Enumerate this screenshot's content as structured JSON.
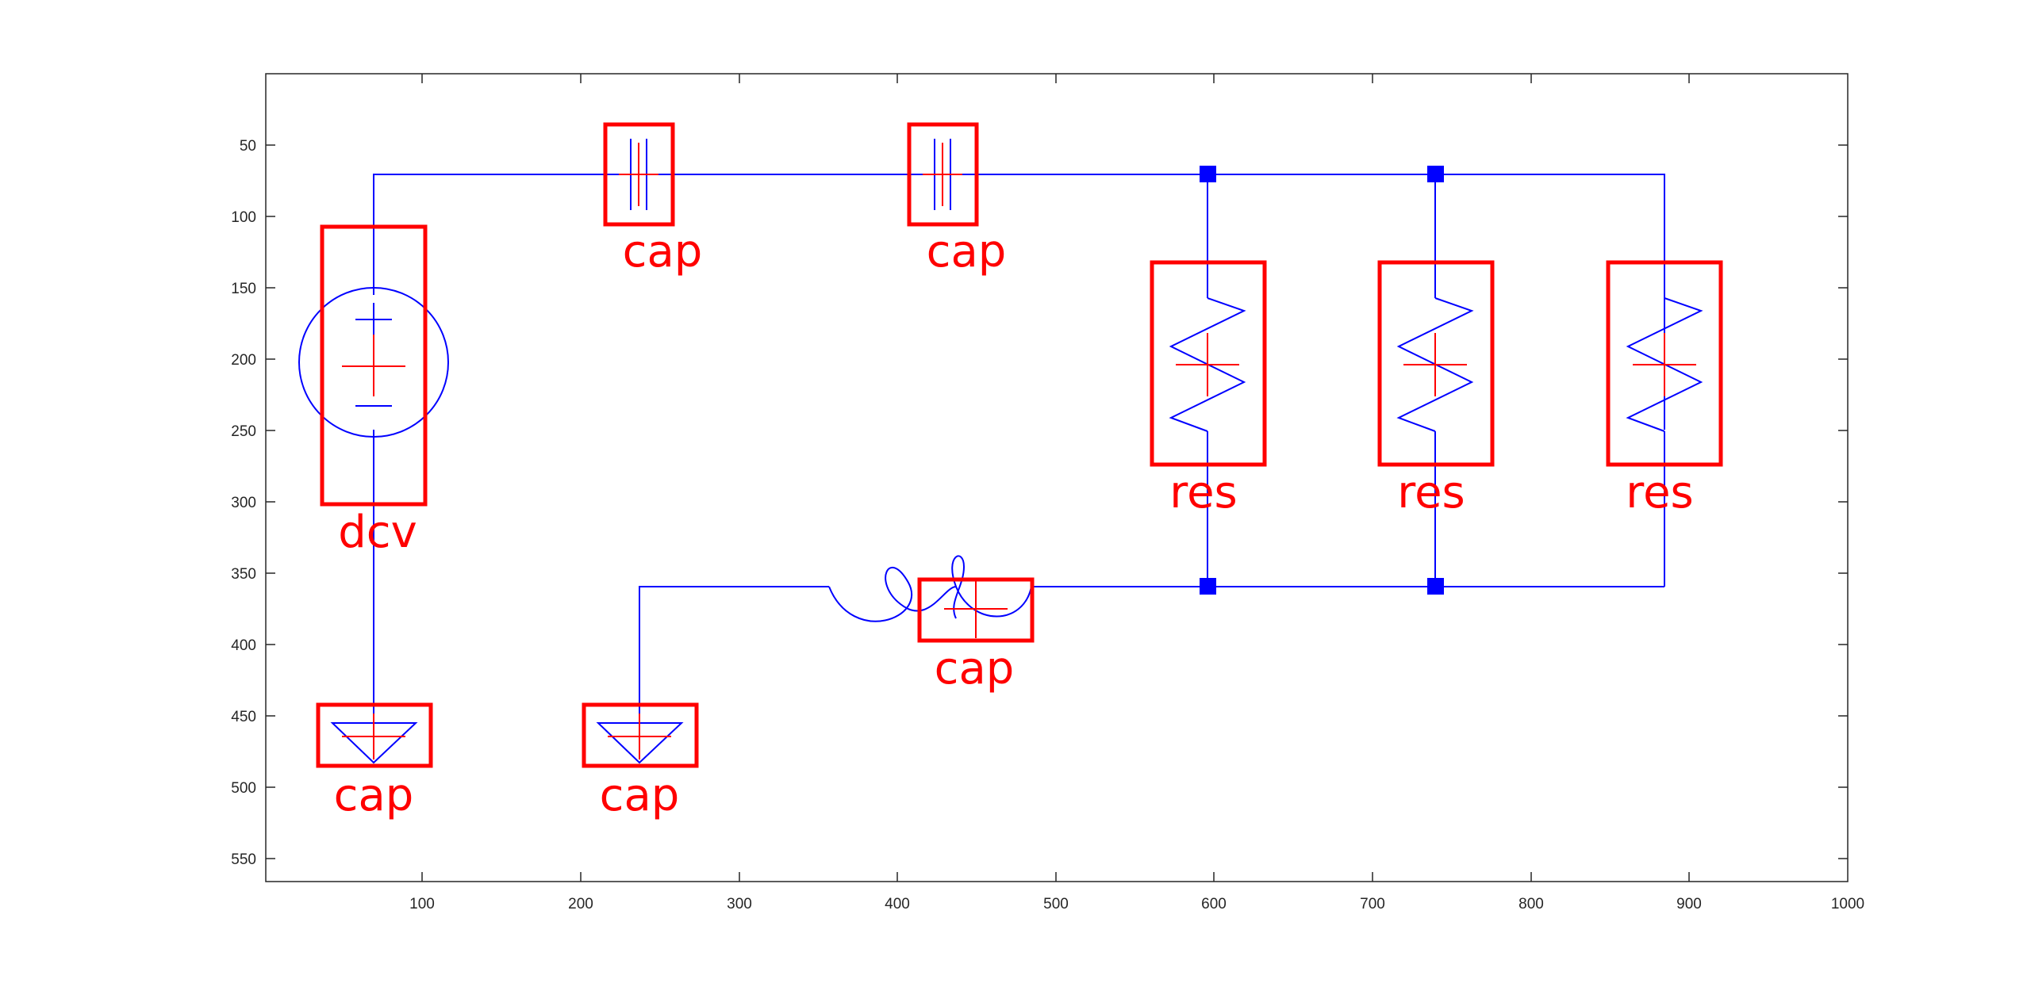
{
  "figure": {
    "axes": {
      "x_ticks": [
        "100",
        "200",
        "300",
        "400",
        "500",
        "600",
        "700",
        "800",
        "900",
        "1000"
      ],
      "y_ticks": [
        "50",
        "100",
        "150",
        "200",
        "250",
        "300",
        "350",
        "400",
        "450",
        "500",
        "550"
      ],
      "xlim": [
        0,
        1000
      ],
      "ylim": [
        565,
        0
      ],
      "y_direction": "reversed",
      "grid": false
    },
    "colors": {
      "wire": "#0000ff",
      "box": "#ff0000",
      "axis": "#262626",
      "background": "#ffffff"
    },
    "components": [
      {
        "label": "dcv",
        "type": "dc-voltage-source"
      },
      {
        "label": "cap",
        "type": "capacitor"
      },
      {
        "label": "cap",
        "type": "capacitor"
      },
      {
        "label": "res",
        "type": "resistor"
      },
      {
        "label": "res",
        "type": "resistor"
      },
      {
        "label": "res",
        "type": "resistor"
      },
      {
        "label": "cap",
        "type": "inductor"
      },
      {
        "label": "cap",
        "type": "ground"
      },
      {
        "label": "cap",
        "type": "ground"
      }
    ]
  }
}
